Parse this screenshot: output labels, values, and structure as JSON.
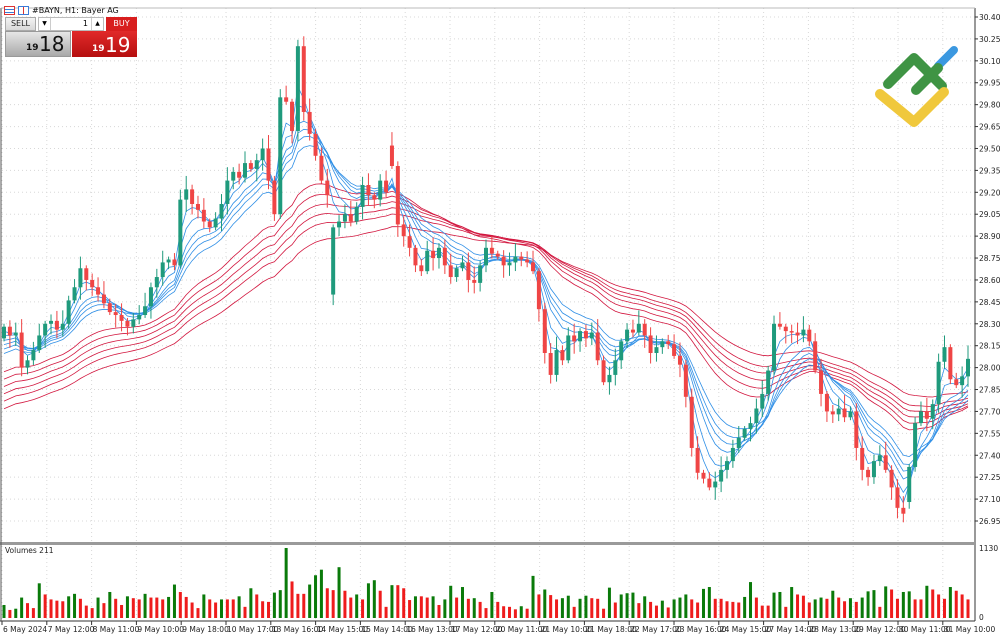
{
  "window": {
    "title": "#BAYN, H1:  Bayer AG"
  },
  "trade_panel": {
    "sell_label": "SELL",
    "buy_label": "BUY",
    "volume_value": "1",
    "sell_price_prefix": "19",
    "sell_price_main": "18",
    "buy_price_prefix": "19",
    "buy_price_main": "19"
  },
  "volume_pane": {
    "label": "Volumes 211",
    "max_label": "1130",
    "min_label": "0",
    "max": 1130
  },
  "colors": {
    "bull": "#1f9a7c",
    "bear": "#ef4545",
    "vol_up": "#0a7a0a",
    "vol_down": "#ee1c1c",
    "ma_short": "#2f8fe6",
    "ma_long": "#d2173f",
    "logo_green": "#3f9444",
    "logo_blue": "#3b98e0",
    "logo_yellow": "#f0c83c"
  },
  "chart_data": {
    "type": "candlestick",
    "symbol": "#BAYN",
    "timeframe": "H1",
    "ylim": [
      26.95,
      30.4
    ],
    "grid": true,
    "price_ticks": [
      "30.40",
      "30.25",
      "30.10",
      "29.95",
      "29.80",
      "29.65",
      "29.50",
      "29.35",
      "29.20",
      "29.05",
      "28.90",
      "28.75",
      "28.60",
      "28.45",
      "28.30",
      "28.15",
      "28.00",
      "27.85",
      "27.70",
      "27.55",
      "27.40",
      "27.25",
      "27.10",
      "26.95"
    ],
    "time_ticks": [
      "6 May 2024",
      "7 May 12:00",
      "8 May 11:00",
      "9 May 10:00",
      "9 May 18:00",
      "10 May 17:00",
      "13 May 16:00",
      "14 May 15:00",
      "15 May 14:00",
      "16 May 13:00",
      "17 May 12:00",
      "20 May 11:00",
      "21 May 10:00",
      "21 May 18:00",
      "22 May 17:00",
      "23 May 16:00",
      "24 May 15:00",
      "27 May 14:00",
      "28 May 13:00",
      "29 May 12:00",
      "30 May 11:00",
      "31 May 10:00"
    ],
    "indicators": {
      "ma_short_count": 6,
      "ma_long_count": 6
    },
    "close": [
      28.28,
      28.22,
      28.24,
      28.0,
      28.05,
      28.12,
      28.22,
      28.3,
      28.32,
      28.26,
      28.3,
      28.46,
      28.55,
      28.68,
      28.6,
      28.55,
      28.5,
      28.44,
      28.38,
      28.36,
      28.32,
      28.28,
      28.33,
      28.36,
      28.42,
      28.55,
      28.62,
      28.72,
      28.74,
      28.7,
      29.15,
      29.22,
      29.12,
      29.08,
      29.0,
      28.96,
      29.02,
      29.12,
      29.28,
      29.34,
      29.3,
      29.4,
      29.36,
      29.42,
      29.5,
      29.28,
      29.05,
      29.85,
      29.82,
      29.62,
      30.2,
      29.75,
      29.6,
      29.45,
      29.28,
      29.18,
      28.96,
      29.0,
      29.05,
      29.0,
      29.1,
      29.25,
      29.18,
      29.15,
      29.28,
      29.2,
      29.38,
      28.98,
      28.9,
      28.82,
      28.7,
      28.66,
      28.8,
      28.75,
      28.82,
      28.7,
      28.62,
      28.68,
      28.72,
      28.6,
      28.58,
      28.7,
      28.82,
      28.78,
      28.76,
      28.7,
      28.72,
      28.76,
      28.74,
      28.72,
      28.66,
      28.4,
      28.1,
      27.95,
      28.12,
      28.05,
      28.22,
      28.18,
      28.25,
      28.2,
      28.24,
      28.05,
      27.9,
      27.95,
      28.05,
      28.18,
      28.26,
      28.24,
      28.3,
      28.22,
      28.1,
      28.14,
      28.18,
      28.16,
      28.08,
      28.02,
      27.8,
      27.45,
      27.28,
      27.24,
      27.18,
      27.22,
      27.3,
      27.36,
      27.45,
      27.52,
      27.58,
      27.62,
      27.72,
      27.82,
      27.98,
      28.3,
      28.28,
      28.25,
      28.24,
      28.22,
      28.26,
      28.18,
      27.98,
      27.82,
      27.7,
      27.68,
      27.72,
      27.66,
      27.7,
      27.45,
      27.3,
      27.25,
      27.36,
      27.4,
      27.3,
      27.18,
      27.04,
      27.0,
      27.32,
      27.62,
      27.7,
      27.65,
      27.75,
      28.04,
      28.14,
      27.92,
      27.88,
      27.94,
      28.06
    ],
    "open_overrides": {
      "0": 28.2,
      "56": 28.5,
      "66": 29.52,
      "154": 27.08
    },
    "volume": [
      210,
      130,
      150,
      330,
      240,
      160,
      560,
      380,
      300,
      280,
      270,
      350,
      390,
      310,
      200,
      160,
      330,
      240,
      420,
      310,
      210,
      350,
      320,
      300,
      390,
      330,
      330,
      300,
      340,
      540,
      420,
      340,
      250,
      160,
      380,
      300,
      250,
      300,
      300,
      300,
      350,
      180,
      480,
      380,
      270,
      260,
      410,
      450,
      1130,
      590,
      390,
      390,
      540,
      690,
      780,
      480,
      450,
      820,
      440,
      330,
      380,
      300,
      560,
      610,
      440,
      180,
      530,
      530,
      480,
      290,
      350,
      350,
      330,
      350,
      210,
      300,
      520,
      330,
      500,
      310,
      320,
      260,
      160,
      420,
      260,
      190,
      180,
      140,
      190,
      150,
      680,
      380,
      460,
      370,
      300,
      320,
      360,
      180,
      310,
      360,
      320,
      310,
      150,
      490,
      250,
      380,
      400,
      410,
      240,
      350,
      260,
      200,
      280,
      170,
      300,
      330,
      380,
      300,
      250,
      470,
      500,
      310,
      310,
      270,
      260,
      250,
      340,
      580,
      330,
      200,
      200,
      410,
      420,
      180,
      500,
      380,
      360,
      250,
      300,
      330,
      310,
      440,
      330,
      270,
      320,
      260,
      330,
      430,
      450,
      180,
      510,
      460,
      310,
      420,
      430,
      300,
      300,
      520,
      460,
      380,
      310,
      500,
      440,
      380,
      300
    ]
  }
}
